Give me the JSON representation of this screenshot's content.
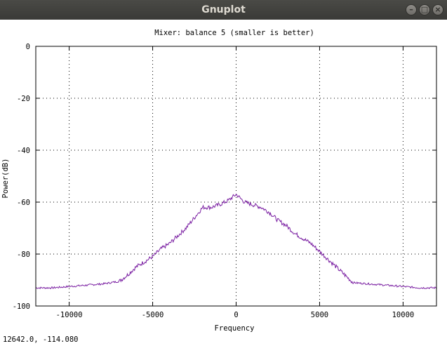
{
  "window": {
    "title": "Gnuplot"
  },
  "chart_data": {
    "type": "line",
    "title": "Mixer: balance   5 (smaller is better)",
    "xlabel": "Frequency",
    "ylabel": "Power(dB)",
    "xlim": [
      -12000,
      12000
    ],
    "ylim": [
      -100,
      0
    ],
    "xticks": [
      -10000,
      -5000,
      0,
      5000,
      10000
    ],
    "yticks": [
      0,
      -20,
      -40,
      -60,
      -80,
      -100
    ],
    "xtick_labels": [
      "-10000",
      "-5000",
      "0",
      "5000",
      "10000"
    ],
    "ytick_labels": [
      "0",
      "-20",
      "-40",
      "-60",
      "-80",
      "-100"
    ],
    "grid": "dotted",
    "color": "#7a1fa2",
    "x": [
      -12000,
      -11000,
      -10000,
      -9000,
      -8000,
      -7000,
      -6500,
      -6000,
      -5500,
      -5000,
      -4500,
      -4000,
      -3500,
      -3000,
      -2500,
      -2000,
      -1500,
      -1000,
      -500,
      0,
      500,
      1000,
      1500,
      2000,
      2500,
      3000,
      3500,
      4000,
      4500,
      5000,
      5500,
      6000,
      6500,
      7000,
      8000,
      9000,
      10000,
      11000,
      12000
    ],
    "y": [
      -93,
      -93,
      -92.5,
      -92,
      -91.5,
      -90.5,
      -88,
      -85,
      -83,
      -81,
      -78,
      -76,
      -73,
      -70,
      -66,
      -62,
      -62,
      -61,
      -59.5,
      -57,
      -60,
      -61,
      -62,
      -64,
      -67,
      -69,
      -72,
      -74,
      -76,
      -79,
      -82,
      -85,
      -88,
      -91,
      -91.5,
      -92,
      -92.5,
      -93,
      -93
    ]
  },
  "status": {
    "coords": "12642.0, -114.080"
  }
}
